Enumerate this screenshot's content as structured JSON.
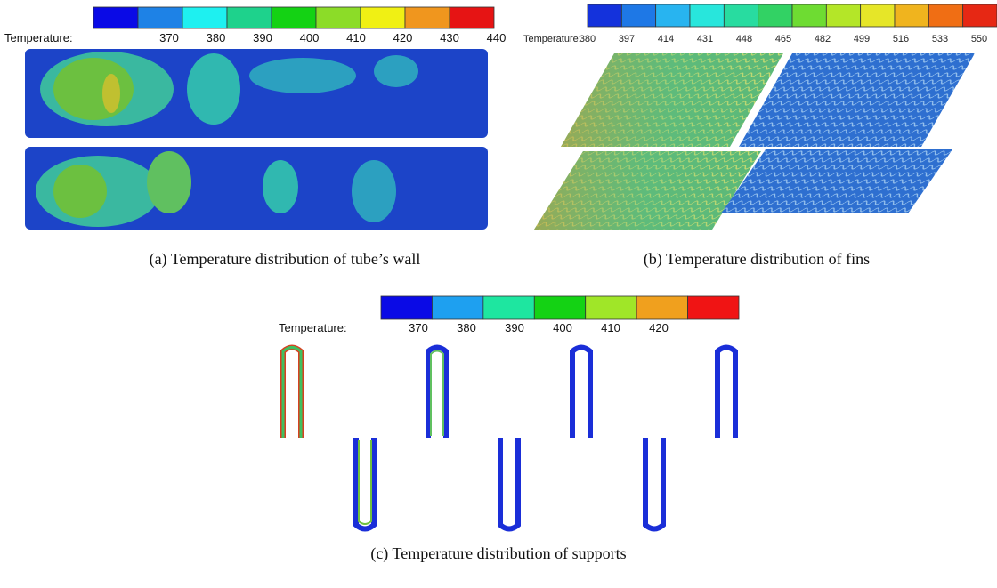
{
  "panels": [
    {
      "legend_label": "Temperature:",
      "ticks": [
        370,
        380,
        390,
        400,
        410,
        420,
        430,
        440
      ],
      "colors": [
        "#0a0ae6",
        "#1e82e6",
        "#1ef0f0",
        "#1ed28c",
        "#14d214",
        "#8cdc28",
        "#f0f014",
        "#f0961e",
        "#e61414"
      ],
      "caption": "(a) Temperature distribution of tube’s wall"
    },
    {
      "legend_label": "Temperature:",
      "ticks": [
        380,
        397,
        414,
        431,
        448,
        465,
        482,
        499,
        516,
        533,
        550
      ],
      "colors": [
        "#1432dc",
        "#1e78e6",
        "#28b4f0",
        "#28e6dc",
        "#28dca0",
        "#32d264",
        "#6edc32",
        "#b4e628",
        "#e6e628",
        "#f0b41e",
        "#f06e14",
        "#e62814"
      ],
      "caption": "(b) Temperature distribution of fins"
    },
    {
      "legend_label": "Temperature:",
      "ticks": [
        370,
        380,
        390,
        400,
        410,
        420
      ],
      "colors": [
        "#0a0ae6",
        "#1ea0f0",
        "#1ee6a0",
        "#14d214",
        "#a0e628",
        "#f0a01e",
        "#f01414"
      ],
      "caption": "(c) Temperature distribution of supports"
    }
  ]
}
